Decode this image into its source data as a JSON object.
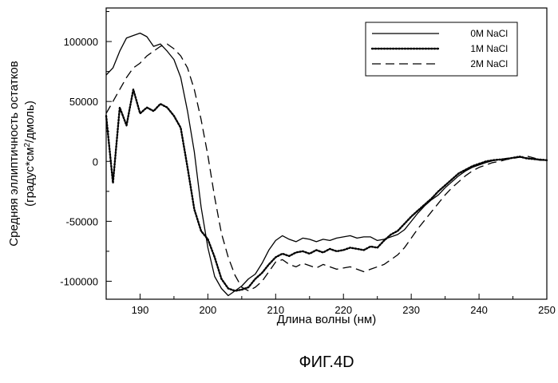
{
  "chart_data": {
    "type": "line",
    "title": "",
    "caption": "ФИГ.4D",
    "xlabel": "Длина волны (нм)",
    "ylabel_line1": "Средняя эллиптичность остатков",
    "ylabel_line2_pre": "(градус*см",
    "ylabel_sup": "2",
    "ylabel_line2_post": "/дмоль)",
    "xlim": [
      185,
      250
    ],
    "ylim": [
      -115000,
      128000
    ],
    "x_ticks": [
      190,
      200,
      210,
      220,
      230,
      240,
      250
    ],
    "x_tick_labels": [
      "190",
      "200",
      "210",
      "220",
      "230",
      "240",
      "250"
    ],
    "y_ticks": [
      100000,
      50000,
      0,
      -50000,
      -100000
    ],
    "y_tick_labels": [
      "100000",
      "50000",
      "0",
      "-50000",
      "-100000"
    ],
    "grid": false,
    "legend_position": "top-right",
    "series": [
      {
        "name": "0M NaCl",
        "style": "solid",
        "x": [
          185,
          186,
          187,
          188,
          189,
          190,
          191,
          192,
          193,
          194,
          195,
          196,
          197,
          198,
          199,
          200,
          201,
          202,
          203,
          204,
          205,
          206,
          207,
          208,
          209,
          210,
          211,
          212,
          213,
          214,
          215,
          216,
          217,
          218,
          219,
          220,
          221,
          222,
          223,
          224,
          225,
          226,
          227,
          228,
          229,
          230,
          231,
          232,
          233,
          234,
          235,
          236,
          237,
          238,
          239,
          240,
          241,
          242,
          243,
          244,
          245,
          246,
          247,
          248,
          249,
          250
        ],
        "y": [
          72000,
          78000,
          92000,
          103000,
          105000,
          107000,
          104000,
          96000,
          98000,
          92000,
          85000,
          70000,
          42000,
          8000,
          -38000,
          -72000,
          -96000,
          -106000,
          -112000,
          -108000,
          -104000,
          -98000,
          -94000,
          -85000,
          -74000,
          -66000,
          -62000,
          -65000,
          -67000,
          -64000,
          -65000,
          -67000,
          -65000,
          -66000,
          -64000,
          -63000,
          -62000,
          -64000,
          -63000,
          -63000,
          -66000,
          -65000,
          -63000,
          -61000,
          -57000,
          -50000,
          -43000,
          -37000,
          -32000,
          -28000,
          -22000,
          -17000,
          -12000,
          -8000,
          -5000,
          -3000,
          -1000,
          500,
          1500,
          2500,
          3000,
          3500,
          3000,
          2000,
          1000,
          1000
        ]
      },
      {
        "name": "1M NaCl",
        "style": "dotted",
        "x": [
          185,
          186,
          187,
          188,
          189,
          190,
          191,
          192,
          193,
          194,
          195,
          196,
          197,
          198,
          199,
          200,
          201,
          202,
          203,
          204,
          205,
          206,
          207,
          208,
          209,
          210,
          211,
          212,
          213,
          214,
          215,
          216,
          217,
          218,
          219,
          220,
          221,
          222,
          223,
          224,
          225,
          226,
          227,
          228,
          229,
          230,
          231,
          232,
          233,
          234,
          235,
          236,
          237,
          238,
          239,
          240,
          241,
          242,
          243,
          244,
          245,
          246,
          247,
          248,
          249,
          250
        ],
        "y": [
          38000,
          -18000,
          45000,
          30000,
          60000,
          40000,
          45000,
          42000,
          48000,
          45000,
          38000,
          28000,
          -5000,
          -40000,
          -58000,
          -65000,
          -80000,
          -98000,
          -106000,
          -108000,
          -107000,
          -105000,
          -98000,
          -93000,
          -86000,
          -80000,
          -77000,
          -79000,
          -76000,
          -75000,
          -77000,
          -74000,
          -76000,
          -73000,
          -75000,
          -74000,
          -72000,
          -73000,
          -74000,
          -71000,
          -72000,
          -66000,
          -61000,
          -58000,
          -52000,
          -46000,
          -41000,
          -36000,
          -31000,
          -25000,
          -20000,
          -15000,
          -10000,
          -7000,
          -4000,
          -2000,
          0,
          1000,
          1500,
          2000,
          3000,
          4000,
          2500,
          2000,
          1500,
          1000
        ]
      },
      {
        "name": "2M NaCl",
        "style": "dashed",
        "x": [
          185,
          186,
          187,
          188,
          189,
          190,
          191,
          192,
          193,
          194,
          195,
          196,
          197,
          198,
          199,
          200,
          201,
          202,
          203,
          204,
          205,
          206,
          207,
          208,
          209,
          210,
          211,
          212,
          213,
          214,
          215,
          216,
          217,
          218,
          219,
          220,
          221,
          222,
          223,
          224,
          225,
          226,
          227,
          228,
          229,
          230,
          231,
          232,
          233,
          234,
          235,
          236,
          237,
          238,
          239,
          240,
          241,
          242,
          243,
          244,
          245,
          246,
          247,
          248,
          249,
          250
        ],
        "y": [
          40000,
          50000,
          60000,
          70000,
          78000,
          82000,
          88000,
          92000,
          96000,
          98000,
          94000,
          88000,
          78000,
          60000,
          35000,
          5000,
          -30000,
          -60000,
          -80000,
          -95000,
          -105000,
          -108000,
          -105000,
          -100000,
          -92000,
          -84000,
          -82000,
          -86000,
          -88000,
          -85000,
          -87000,
          -89000,
          -86000,
          -88000,
          -90000,
          -89000,
          -88000,
          -90000,
          -92000,
          -90000,
          -88000,
          -86000,
          -82000,
          -78000,
          -72000,
          -64000,
          -56000,
          -49000,
          -42000,
          -35000,
          -28000,
          -22000,
          -17000,
          -12000,
          -8000,
          -5000,
          -3000,
          -1000,
          0,
          1500,
          2500,
          3500,
          4500,
          3000,
          1500,
          1000
        ]
      }
    ]
  }
}
